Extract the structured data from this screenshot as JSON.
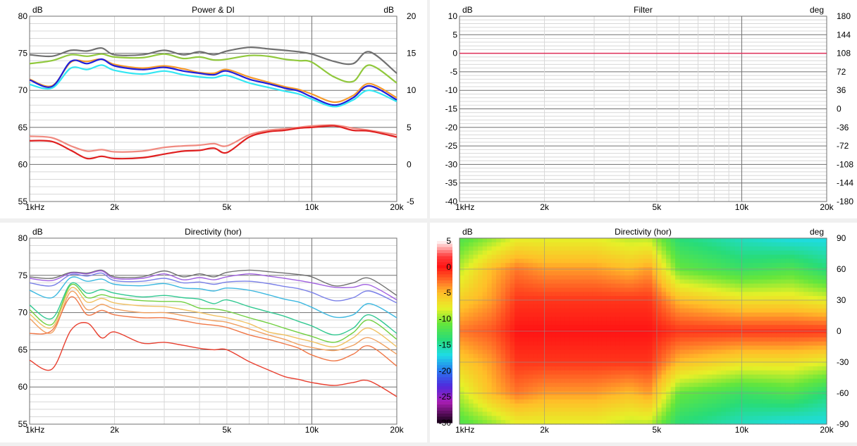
{
  "panels": {
    "power": {
      "title": "Power & DI",
      "ylabel_left": "dB",
      "ylabel_right": "dB",
      "x_ticks": [
        "1kHz",
        "2k",
        "5k",
        "10k",
        "20k"
      ],
      "y_ticks_left": [
        "80",
        "75",
        "70",
        "65",
        "60",
        "55"
      ],
      "y_ticks_right": [
        "20",
        "15",
        "10",
        "5",
        "0",
        "-5"
      ]
    },
    "filter": {
      "title": "Filter",
      "ylabel_left": "dB",
      "ylabel_right": "deg",
      "x_ticks": [
        "1kHz",
        "2k",
        "5k",
        "10k",
        "20k"
      ],
      "y_ticks_left": [
        "10",
        "5",
        "0",
        "-5",
        "-10",
        "-15",
        "-20",
        "-25",
        "-30",
        "-35",
        "-40"
      ],
      "y_ticks_right": [
        "180",
        "144",
        "108",
        "72",
        "36",
        "0",
        "-36",
        "-72",
        "-108",
        "-144",
        "-180"
      ]
    },
    "dirhor": {
      "title": "Directivity (hor)",
      "ylabel_left": "dB",
      "x_ticks": [
        "1kHz",
        "2k",
        "5k",
        "10k",
        "20k"
      ],
      "y_ticks_left": [
        "80",
        "75",
        "70",
        "65",
        "60",
        "55"
      ]
    },
    "heat": {
      "title": "Directivity (hor)",
      "ylabel_left": "dB",
      "ylabel_right": "deg",
      "x_ticks": [
        "1kHz",
        "2k",
        "5k",
        "10k",
        "20k"
      ],
      "colorbar_ticks": [
        "5",
        "0",
        "-5",
        "-10",
        "-15",
        "-20",
        "-25",
        "-30"
      ],
      "y_ticks_right": [
        "90",
        "60",
        "30",
        "0",
        "-30",
        "-60",
        "-90"
      ]
    }
  },
  "chart_data": [
    {
      "type": "line",
      "title": "Power & DI",
      "x_scale": "log",
      "xlim": [
        1000,
        20000
      ],
      "ylim": [
        55,
        80
      ],
      "ylim_right": [
        -5,
        20
      ],
      "grid": true,
      "x": [
        1000,
        1200,
        1400,
        1600,
        1800,
        2000,
        2500,
        3000,
        3500,
        4000,
        4500,
        5000,
        6000,
        7000,
        8000,
        9000,
        10000,
        12000,
        14000,
        16000,
        20000
      ],
      "series": [
        {
          "color": "#707070",
          "axis": "left",
          "values": [
            74.8,
            74.6,
            75.4,
            75.3,
            75.7,
            74.8,
            74.8,
            75.4,
            74.8,
            75.2,
            74.8,
            75.3,
            75.8,
            75.6,
            75.4,
            75.2,
            74.9,
            73.9,
            73.6,
            75.2,
            72.3
          ]
        },
        {
          "color": "#90c83c",
          "axis": "left",
          "values": [
            73.6,
            74.0,
            74.8,
            74.6,
            74.9,
            74.5,
            74.4,
            74.9,
            74.3,
            74.5,
            74.1,
            74.2,
            74.7,
            74.6,
            74.2,
            74.0,
            73.8,
            71.8,
            71.2,
            73.4,
            71.0
          ]
        },
        {
          "color": "#f59a2c",
          "axis": "left",
          "values": [
            71.5,
            70.6,
            73.8,
            73.9,
            74.2,
            73.5,
            73.0,
            73.3,
            72.9,
            72.4,
            72.3,
            72.8,
            71.8,
            71.1,
            70.5,
            70.1,
            69.5,
            68.4,
            69.3,
            70.9,
            69.0
          ]
        },
        {
          "color": "#1e1eda",
          "axis": "left",
          "values": [
            71.4,
            70.5,
            73.9,
            73.6,
            74.2,
            73.3,
            72.8,
            73.1,
            72.6,
            72.3,
            72.1,
            72.6,
            71.5,
            70.9,
            70.3,
            69.9,
            69.1,
            68.0,
            69.0,
            70.6,
            68.7
          ]
        },
        {
          "color": "#33e6f2",
          "axis": "left",
          "values": [
            70.8,
            70.3,
            73.0,
            72.8,
            73.4,
            72.7,
            72.2,
            72.6,
            72.1,
            71.8,
            71.7,
            72.0,
            71.0,
            70.4,
            69.9,
            69.5,
            68.8,
            67.8,
            68.7,
            70.0,
            68.5
          ]
        },
        {
          "color": "#f08a80",
          "axis": "right",
          "values": [
            3.8,
            3.6,
            2.5,
            1.8,
            2.0,
            1.7,
            1.8,
            2.3,
            2.5,
            2.6,
            2.8,
            2.5,
            4.0,
            4.6,
            4.8,
            5.0,
            5.2,
            5.3,
            4.9,
            4.6,
            4.0
          ]
        },
        {
          "color": "#e02020",
          "axis": "right",
          "values": [
            3.2,
            3.1,
            1.9,
            0.8,
            1.1,
            0.8,
            0.9,
            1.4,
            1.8,
            1.9,
            2.2,
            1.6,
            3.7,
            4.4,
            4.6,
            4.9,
            5.0,
            5.2,
            4.6,
            4.5,
            3.7
          ]
        }
      ]
    },
    {
      "type": "line",
      "title": "Filter",
      "x_scale": "log",
      "xlim": [
        1000,
        20000
      ],
      "ylim": [
        -40,
        10
      ],
      "ylim_right": [
        -180,
        180
      ],
      "grid": true,
      "x": [
        1000,
        20000
      ],
      "series": [
        {
          "color": "#e0305a",
          "axis": "left",
          "values": [
            0,
            0
          ]
        }
      ]
    },
    {
      "type": "line",
      "title": "Directivity (hor)",
      "x_scale": "log",
      "xlim": [
        1000,
        20000
      ],
      "ylim": [
        55,
        80
      ],
      "grid": true,
      "x": [
        1000,
        1200,
        1400,
        1600,
        1800,
        2000,
        2500,
        3000,
        3500,
        4000,
        4500,
        5000,
        6000,
        7000,
        8000,
        9000,
        10000,
        12000,
        14000,
        16000,
        20000
      ],
      "series": [
        {
          "color": "#707070",
          "values": [
            74.8,
            74.6,
            75.4,
            75.3,
            75.7,
            74.8,
            74.8,
            75.6,
            74.8,
            75.2,
            74.8,
            75.4,
            75.7,
            75.5,
            75.3,
            75.1,
            74.8,
            73.6,
            74.0,
            74.6,
            72.3
          ]
        },
        {
          "color": "#a060e0",
          "values": [
            74.6,
            74.3,
            75.3,
            75.2,
            75.6,
            74.6,
            74.6,
            75.2,
            74.4,
            74.7,
            74.4,
            74.8,
            75.2,
            74.9,
            74.6,
            74.3,
            74.0,
            73.4,
            73.4,
            73.7,
            71.7
          ]
        },
        {
          "color": "#7a80e8",
          "values": [
            74.0,
            73.6,
            75.1,
            74.9,
            75.3,
            74.3,
            74.2,
            74.6,
            74.0,
            74.1,
            73.8,
            74.1,
            74.2,
            73.9,
            73.5,
            73.2,
            72.7,
            71.6,
            72.0,
            72.9,
            71.3
          ]
        },
        {
          "color": "#3cb8e0",
          "values": [
            73.0,
            72.0,
            74.7,
            74.2,
            74.5,
            73.8,
            73.6,
            73.9,
            73.3,
            73.2,
            72.9,
            73.3,
            73.0,
            72.4,
            71.8,
            71.4,
            70.7,
            69.4,
            69.7,
            71.2,
            69.3
          ]
        },
        {
          "color": "#30c890",
          "values": [
            71.0,
            69.2,
            73.9,
            72.6,
            73.1,
            72.6,
            72.1,
            72.3,
            72.0,
            71.8,
            71.2,
            71.7,
            70.8,
            70.1,
            69.5,
            68.8,
            68.2,
            67.0,
            67.9,
            69.7,
            67.2
          ]
        },
        {
          "color": "#70d040",
          "values": [
            70.4,
            68.4,
            73.7,
            72.0,
            72.4,
            72.0,
            71.6,
            71.5,
            71.4,
            70.6,
            70.5,
            70.2,
            69.3,
            68.6,
            67.9,
            67.3,
            66.8,
            66.0,
            67.3,
            69.0,
            66.4
          ]
        },
        {
          "color": "#f0c060",
          "values": [
            69.8,
            68.0,
            73.3,
            71.4,
            71.9,
            71.3,
            70.9,
            70.8,
            70.4,
            70.0,
            69.6,
            69.3,
            68.5,
            67.4,
            67.0,
            66.5,
            66.1,
            65.4,
            66.6,
            67.9,
            65.4
          ]
        },
        {
          "color": "#f0a060",
          "values": [
            69.2,
            67.3,
            72.8,
            70.4,
            71.1,
            70.5,
            70.0,
            70.0,
            69.6,
            69.2,
            68.9,
            68.7,
            67.8,
            67.0,
            66.4,
            65.7,
            65.3,
            64.9,
            65.6,
            66.6,
            64.4
          ]
        },
        {
          "color": "#f07848",
          "values": [
            67.2,
            67.6,
            72.1,
            69.7,
            70.3,
            69.7,
            69.3,
            69.3,
            68.9,
            68.5,
            68.3,
            68.0,
            67.0,
            66.4,
            65.8,
            65.2,
            64.3,
            63.5,
            64.4,
            65.5,
            62.8
          ]
        },
        {
          "color": "#e84030",
          "values": [
            63.6,
            62.4,
            67.6,
            68.6,
            66.6,
            67.4,
            65.9,
            66.0,
            65.6,
            65.2,
            65.0,
            65.0,
            63.4,
            62.3,
            61.4,
            61.0,
            60.6,
            60.2,
            60.6,
            60.8,
            58.7
          ]
        }
      ]
    },
    {
      "type": "heatmap",
      "title": "Directivity (hor)",
      "x_scale": "log",
      "xlim": [
        1000,
        20000
      ],
      "ylim": [
        -90,
        90
      ],
      "colorbar_range": [
        -30,
        5
      ],
      "x": [
        1000,
        1300,
        1600,
        2000,
        3000,
        4000,
        4700,
        6000,
        10000,
        15000,
        20000
      ],
      "y": [
        90,
        60,
        30,
        0,
        -30,
        -60,
        -90
      ],
      "z": [
        [
          -12,
          -10,
          -8,
          -8,
          -8,
          -9,
          -9,
          -14,
          -16,
          -17,
          -17
        ],
        [
          -9,
          -5,
          -3,
          -4,
          -4,
          -5,
          -4,
          -11,
          -13,
          -12,
          -14
        ],
        [
          -6,
          -4,
          -1,
          -1,
          -1,
          -1,
          -1,
          -5,
          -7,
          -7,
          -8
        ],
        [
          -3,
          -2,
          0,
          0,
          0,
          0,
          0,
          -1,
          -1,
          -1,
          -1
        ],
        [
          -6,
          -4,
          -1,
          -1,
          -1,
          -1,
          -1,
          -5,
          -7,
          -7,
          -8
        ],
        [
          -9,
          -5,
          -3,
          -4,
          -4,
          -5,
          -4,
          -11,
          -13,
          -12,
          -14
        ],
        [
          -12,
          -10,
          -8,
          -8,
          -8,
          -9,
          -9,
          -14,
          -16,
          -17,
          -17
        ]
      ]
    }
  ]
}
